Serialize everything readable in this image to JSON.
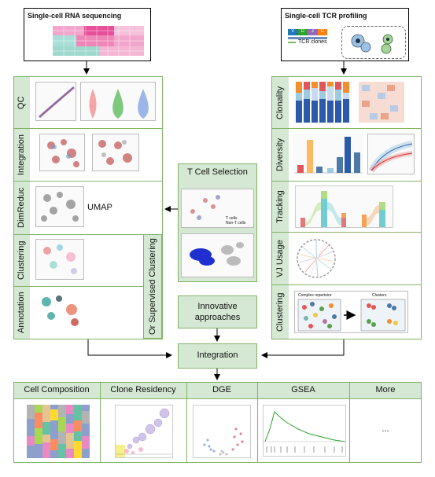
{
  "inputs": {
    "scrna_title": "Single-cell RNA sequencing",
    "sctcr_title": "Single-cell TCR profiling",
    "tcr_legend": "TCR clones",
    "vdj_letters": [
      "V",
      "D",
      "J",
      "C"
    ]
  },
  "left_panel": {
    "steps": [
      "QC",
      "Integration",
      "DimReduc",
      "Clustering",
      "Annotation"
    ],
    "umap_label": "UMAP",
    "side_label": "Or Supervised Clustering"
  },
  "right_panel": {
    "steps": [
      "Clonality",
      "Diversity",
      "Tracking",
      "VJ Usage",
      "Clustering"
    ],
    "cluster_inset_left": "Complex repertoire",
    "cluster_inset_right": "Clusters"
  },
  "middle": {
    "tcell_selection": "T Cell Selection",
    "tcell_legend": [
      "T cells",
      "Non-T cells"
    ],
    "innovative": [
      "Innovative",
      "approaches"
    ],
    "integration": "Integration"
  },
  "outputs": {
    "labels": [
      "Cell Composition",
      "Clone Residency",
      "DGE",
      "GSEA",
      "More"
    ],
    "more_content": "..."
  },
  "colors": {
    "green_fill": "#d5e8d4",
    "green_border": "#82b366",
    "arrow": "#000000"
  }
}
